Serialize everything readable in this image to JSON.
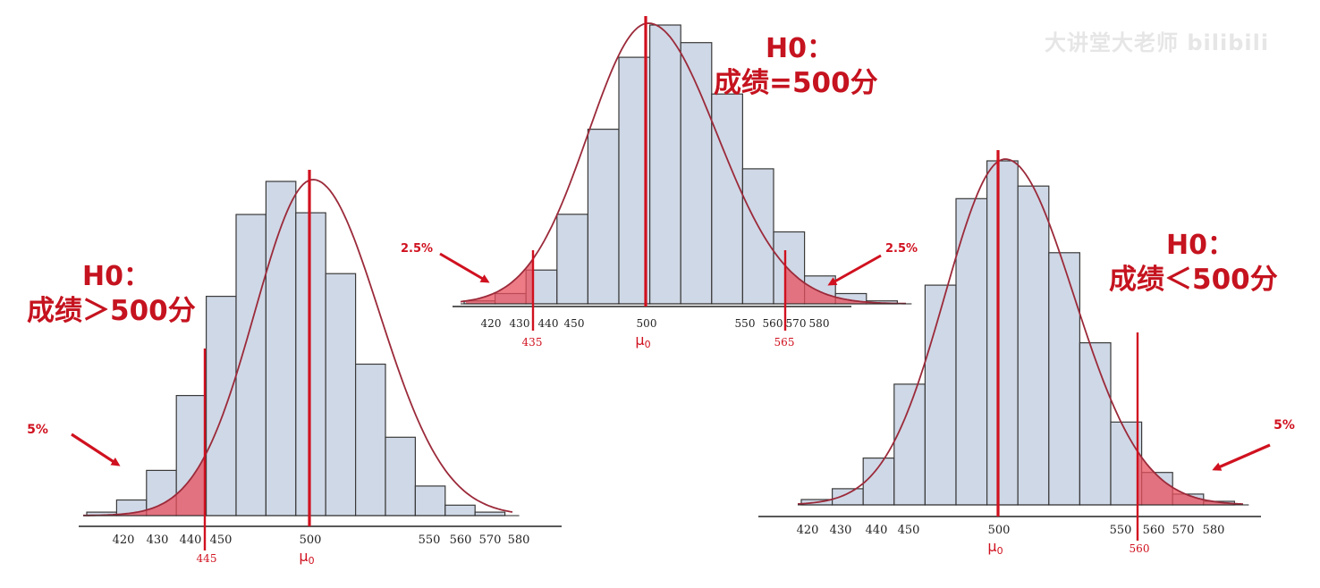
{
  "watermark": "大讲堂大老师 bilibili",
  "colors": {
    "bar_fill": "#cfd8e6",
    "bar_stroke": "#3a3a3a",
    "curve": "#9b2a3a",
    "accent_red": "#d0111f",
    "region_fill": "#e8505e",
    "axis": "#222222"
  },
  "charts": [
    {
      "id": "right-tailed",
      "hypothesis": {
        "label": "H0：",
        "statement": "成绩＞500分"
      },
      "tail": "left",
      "region_label": "5%",
      "critical_value": "445",
      "mean_label": "μ0",
      "mean_tick": "500",
      "ticks": [
        "420",
        "430",
        "440",
        "450",
        "550",
        "560",
        "570",
        "580"
      ],
      "bar_freqs": [
        0.02,
        0.09,
        0.26,
        0.69,
        1.26,
        1.73,
        1.92,
        1.74,
        1.39,
        0.87,
        0.45,
        0.17,
        0.06,
        0.02
      ]
    },
    {
      "id": "two-tailed",
      "hypothesis": {
        "label": "H0：",
        "statement": "成绩=500分"
      },
      "tail": "both",
      "region_label_left": "2.5%",
      "region_label_right": "2.5%",
      "critical_value_left": "435",
      "critical_value_right": "565",
      "mean_label": "μ0",
      "mean_tick": "500",
      "ticks_left": [
        "420",
        "430",
        "440",
        "450"
      ],
      "ticks_right": [
        "550",
        "560",
        "570",
        "580"
      ],
      "bar_freqs": [
        0.02,
        0.07,
        0.23,
        0.61,
        1.19,
        1.68,
        1.9,
        1.78,
        1.43,
        0.92,
        0.49,
        0.19,
        0.07,
        0.02
      ]
    },
    {
      "id": "left-tailed",
      "hypothesis": {
        "label": "H0：",
        "statement": "成绩＜500分"
      },
      "tail": "right",
      "region_label": "5%",
      "critical_value": "560",
      "mean_label": "μ0",
      "mean_tick": "500",
      "ticks": [
        "420",
        "430",
        "440",
        "450",
        "550",
        "560",
        "570",
        "580"
      ],
      "bar_freqs": [
        0.03,
        0.09,
        0.26,
        0.67,
        1.22,
        1.7,
        1.91,
        1.77,
        1.4,
        0.9,
        0.46,
        0.18,
        0.06,
        0.02
      ]
    }
  ]
}
